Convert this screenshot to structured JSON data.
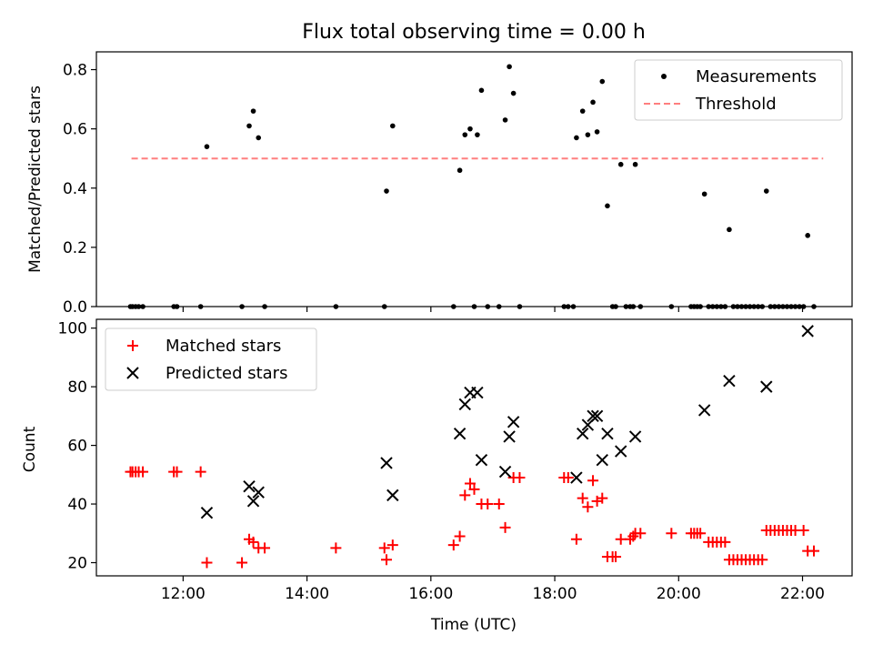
{
  "chart_data": [
    {
      "type": "scatter",
      "title": "Flux total observing time = 0.00 h",
      "xlabel": "",
      "ylabel": "Matched/Predicted stars",
      "xlim": [
        "10:36",
        "22:48"
      ],
      "ylim": [
        0,
        0.86
      ],
      "yticks": [
        0.0,
        0.2,
        0.4,
        0.6,
        0.8
      ],
      "ytick_labels": [
        "0.0",
        "0.2",
        "0.4",
        "0.6",
        "0.8"
      ],
      "xticks": [
        "12:00",
        "14:00",
        "16:00",
        "18:00",
        "20:00",
        "22:00"
      ],
      "grid": false,
      "legend": "top-right",
      "threshold": {
        "name": "Threshold",
        "y": 0.5,
        "x": [
          "11:10",
          "22:20"
        ],
        "color": "#ff7f7f",
        "style": "dashed"
      },
      "series": [
        {
          "name": "Measurements",
          "color": "#000000",
          "marker": "dot",
          "points": [
            [
              "11:09",
              0
            ],
            [
              "11:11",
              0
            ],
            [
              "11:14",
              0
            ],
            [
              "11:17",
              0
            ],
            [
              "11:21",
              0
            ],
            [
              "11:51",
              0
            ],
            [
              "11:54",
              0
            ],
            [
              "12:17",
              0
            ],
            [
              "12:23",
              0.54
            ],
            [
              "12:57",
              0
            ],
            [
              "13:04",
              0.61
            ],
            [
              "13:08",
              0.66
            ],
            [
              "13:13",
              0.57
            ],
            [
              "13:19",
              0
            ],
            [
              "14:28",
              0
            ],
            [
              "15:15",
              0
            ],
            [
              "15:17",
              0.39
            ],
            [
              "15:23",
              0.61
            ],
            [
              "16:22",
              0
            ],
            [
              "16:28",
              0.46
            ],
            [
              "16:33",
              0.58
            ],
            [
              "16:38",
              0.6
            ],
            [
              "16:42",
              0
            ],
            [
              "16:45",
              0.58
            ],
            [
              "16:49",
              0.73
            ],
            [
              "16:55",
              0
            ],
            [
              "17:06",
              0
            ],
            [
              "17:12",
              0.63
            ],
            [
              "17:16",
              0.81
            ],
            [
              "17:20",
              0.72
            ],
            [
              "17:26",
              0
            ],
            [
              "18:09",
              0
            ],
            [
              "18:13",
              0
            ],
            [
              "18:18",
              0
            ],
            [
              "18:21",
              0.57
            ],
            [
              "18:27",
              0.66
            ],
            [
              "18:32",
              0.58
            ],
            [
              "18:37",
              0.69
            ],
            [
              "18:41",
              0.59
            ],
            [
              "18:46",
              0.76
            ],
            [
              "18:51",
              0.34
            ],
            [
              "18:56",
              0
            ],
            [
              "18:59",
              0
            ],
            [
              "19:04",
              0.48
            ],
            [
              "19:09",
              0
            ],
            [
              "19:13",
              0
            ],
            [
              "19:16",
              0
            ],
            [
              "19:18",
              0.48
            ],
            [
              "19:23",
              0
            ],
            [
              "19:53",
              0
            ],
            [
              "20:12",
              0
            ],
            [
              "20:15",
              0
            ],
            [
              "20:18",
              0
            ],
            [
              "20:21",
              0
            ],
            [
              "20:25",
              0.38
            ],
            [
              "20:29",
              0
            ],
            [
              "20:33",
              0
            ],
            [
              "20:37",
              0
            ],
            [
              "20:41",
              0
            ],
            [
              "20:45",
              0
            ],
            [
              "20:49",
              0.26
            ],
            [
              "20:53",
              0
            ],
            [
              "20:57",
              0
            ],
            [
              "21:01",
              0
            ],
            [
              "21:05",
              0
            ],
            [
              "21:09",
              0
            ],
            [
              "21:13",
              0
            ],
            [
              "21:17",
              0
            ],
            [
              "21:21",
              0
            ],
            [
              "21:25",
              0.39
            ],
            [
              "21:29",
              0
            ],
            [
              "21:33",
              0
            ],
            [
              "21:37",
              0
            ],
            [
              "21:41",
              0
            ],
            [
              "21:45",
              0
            ],
            [
              "21:49",
              0
            ],
            [
              "21:53",
              0
            ],
            [
              "21:57",
              0
            ],
            [
              "22:01",
              0
            ],
            [
              "22:05",
              0.24
            ],
            [
              "22:11",
              0
            ]
          ]
        }
      ]
    },
    {
      "type": "scatter",
      "title": "",
      "xlabel": "Time (UTC)",
      "ylabel": "Count",
      "xlim": [
        "10:36",
        "22:48"
      ],
      "ylim": [
        15.5,
        103
      ],
      "yticks": [
        20,
        40,
        60,
        80,
        100
      ],
      "ytick_labels": [
        "20",
        "40",
        "60",
        "80",
        "100"
      ],
      "xticks": [
        "12:00",
        "14:00",
        "16:00",
        "18:00",
        "20:00",
        "22:00"
      ],
      "xtick_labels": [
        "12:00",
        "14:00",
        "16:00",
        "18:00",
        "20:00",
        "22:00"
      ],
      "grid": false,
      "legend": "top-left",
      "series": [
        {
          "name": "Matched stars",
          "color": "#ff0000",
          "marker": "plus",
          "points": [
            [
              "11:09",
              51
            ],
            [
              "11:11",
              51
            ],
            [
              "11:14",
              51
            ],
            [
              "11:17",
              51
            ],
            [
              "11:21",
              51
            ],
            [
              "11:51",
              51
            ],
            [
              "11:54",
              51
            ],
            [
              "12:17",
              51
            ],
            [
              "12:23",
              20
            ],
            [
              "12:57",
              20
            ],
            [
              "13:04",
              28
            ],
            [
              "13:08",
              27
            ],
            [
              "13:13",
              25
            ],
            [
              "13:19",
              25
            ],
            [
              "14:28",
              25
            ],
            [
              "15:15",
              25
            ],
            [
              "15:17",
              21
            ],
            [
              "15:23",
              26
            ],
            [
              "16:22",
              26
            ],
            [
              "16:28",
              29
            ],
            [
              "16:33",
              43
            ],
            [
              "16:38",
              47
            ],
            [
              "16:42",
              45
            ],
            [
              "16:49",
              40
            ],
            [
              "16:55",
              40
            ],
            [
              "17:06",
              40
            ],
            [
              "17:12",
              32
            ],
            [
              "17:20",
              49
            ],
            [
              "17:26",
              49
            ],
            [
              "18:09",
              49
            ],
            [
              "18:13",
              49
            ],
            [
              "18:21",
              28
            ],
            [
              "18:27",
              42
            ],
            [
              "18:32",
              39
            ],
            [
              "18:37",
              48
            ],
            [
              "18:41",
              41
            ],
            [
              "18:46",
              42
            ],
            [
              "18:51",
              22
            ],
            [
              "18:56",
              22
            ],
            [
              "18:59",
              22
            ],
            [
              "19:04",
              28
            ],
            [
              "19:13",
              28
            ],
            [
              "19:16",
              29
            ],
            [
              "19:18",
              30
            ],
            [
              "19:23",
              30
            ],
            [
              "19:53",
              30
            ],
            [
              "20:12",
              30
            ],
            [
              "20:15",
              30
            ],
            [
              "20:18",
              30
            ],
            [
              "20:21",
              30
            ],
            [
              "20:29",
              27
            ],
            [
              "20:33",
              27
            ],
            [
              "20:37",
              27
            ],
            [
              "20:41",
              27
            ],
            [
              "20:45",
              27
            ],
            [
              "20:49",
              21
            ],
            [
              "20:53",
              21
            ],
            [
              "20:57",
              21
            ],
            [
              "21:01",
              21
            ],
            [
              "21:05",
              21
            ],
            [
              "21:09",
              21
            ],
            [
              "21:13",
              21
            ],
            [
              "21:17",
              21
            ],
            [
              "21:21",
              21
            ],
            [
              "21:25",
              31
            ],
            [
              "21:29",
              31
            ],
            [
              "21:33",
              31
            ],
            [
              "21:37",
              31
            ],
            [
              "21:41",
              31
            ],
            [
              "21:45",
              31
            ],
            [
              "21:49",
              31
            ],
            [
              "21:53",
              31
            ],
            [
              "22:01",
              31
            ],
            [
              "22:05",
              24
            ],
            [
              "22:11",
              24
            ]
          ]
        },
        {
          "name": "Predicted stars",
          "color": "#000000",
          "marker": "x",
          "points": [
            [
              "12:23",
              37
            ],
            [
              "13:04",
              46
            ],
            [
              "13:08",
              41
            ],
            [
              "13:13",
              44
            ],
            [
              "15:17",
              54
            ],
            [
              "15:23",
              43
            ],
            [
              "16:28",
              64
            ],
            [
              "16:33",
              74
            ],
            [
              "16:38",
              78
            ],
            [
              "16:45",
              78
            ],
            [
              "16:49",
              55
            ],
            [
              "17:12",
              51
            ],
            [
              "17:16",
              63
            ],
            [
              "17:20",
              68
            ],
            [
              "18:21",
              49
            ],
            [
              "18:27",
              64
            ],
            [
              "18:32",
              67
            ],
            [
              "18:37",
              70
            ],
            [
              "18:41",
              70
            ],
            [
              "18:46",
              55
            ],
            [
              "18:51",
              64
            ],
            [
              "19:04",
              58
            ],
            [
              "19:18",
              63
            ],
            [
              "20:25",
              72
            ],
            [
              "20:49",
              82
            ],
            [
              "21:25",
              80
            ],
            [
              "22:05",
              99
            ]
          ]
        }
      ]
    }
  ]
}
